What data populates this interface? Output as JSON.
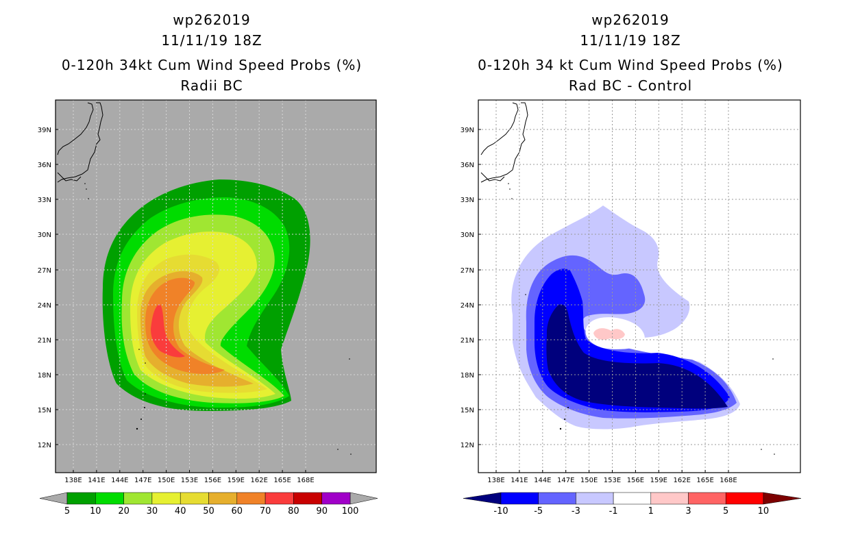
{
  "left": {
    "storm_id": "wp262019",
    "datetime": "11/11/19 18Z",
    "title": "0-120h 34kt Cum Wind Speed Probs (%)",
    "subtitle": "Radii BC",
    "colorbar": {
      "labels": [
        "5",
        "10",
        "20",
        "30",
        "40",
        "50",
        "60",
        "70",
        "80",
        "90",
        "100"
      ],
      "colors": [
        "#00a000",
        "#00dc00",
        "#a0e632",
        "#e6f032",
        "#e6dc32",
        "#e6af2d",
        "#f08228",
        "#fa3c3c",
        "#c80000",
        "#a000c8"
      ]
    },
    "background_color": "#aaaaaa"
  },
  "right": {
    "storm_id": "wp262019",
    "datetime": "11/11/19 18Z",
    "title": "0-120h 34 kt Cum Wind Speed Probs (%)",
    "subtitle": "Rad BC - Control",
    "colorbar": {
      "labels": [
        "-10",
        "-5",
        "-3",
        "-1",
        "1",
        "3",
        "5",
        "10"
      ],
      "colors": [
        "#00007d",
        "#0000ff",
        "#6464ff",
        "#c8c8ff",
        "#ffffff",
        "#ffc8c8",
        "#ff6464",
        "#ff0000",
        "#7d0000"
      ]
    }
  },
  "axes": {
    "lat_labels": [
      "39N",
      "36N",
      "33N",
      "30N",
      "27N",
      "24N",
      "21N",
      "18N",
      "15N",
      "12N"
    ],
    "lon_labels": [
      "138E",
      "141E",
      "144E",
      "147E",
      "150E",
      "153E",
      "156E",
      "159E",
      "162E",
      "165E",
      "168E"
    ]
  }
}
